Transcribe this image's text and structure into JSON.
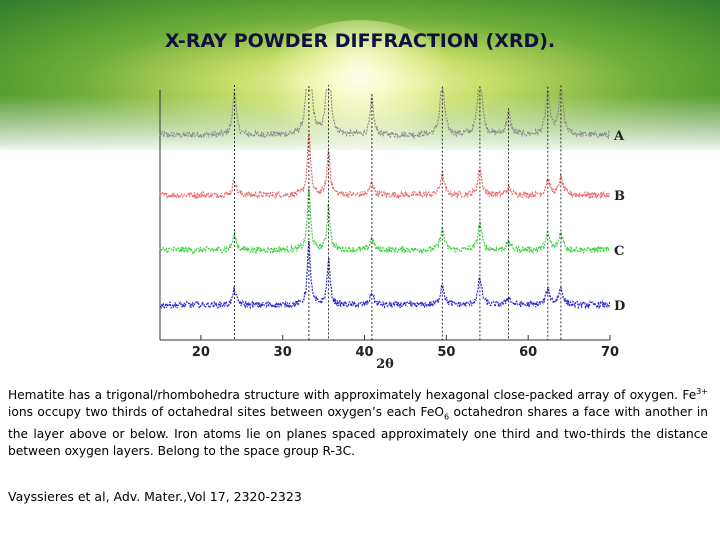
{
  "slide": {
    "title": "X-RAY POWDER DIFFRACTION (XRD).",
    "paragraph": {
      "p1": "Hematite has a trigonal/rhombohedra structure with approximately hexagonal close-packed array of oxygen. Fe",
      "sup1": "3+",
      "p2": " ions occupy two thirds of octahedral sites between oxygen’s each FeO",
      "sub1": "6",
      "p3": " octahedron shares a face with another in the layer above or below. Iron atoms lie on planes spaced approximately one third and two-thirds the distance between oxygen layers. Belong to the space group R-3C."
    },
    "reference": "Vayssieres et al, Adv. Mater.,Vol 17,  2320-2323"
  },
  "chart_data": {
    "type": "line",
    "xlabel": "2θ",
    "ylabel": "",
    "xlim": [
      15,
      70
    ],
    "xticks": [
      20,
      30,
      40,
      50,
      60,
      70
    ],
    "grid": false,
    "peaks_2theta": [
      24.1,
      33.2,
      35.6,
      40.9,
      49.5,
      54.1,
      57.6,
      62.4,
      64.0
    ],
    "peaks_relative_intensity": [
      0.25,
      1.0,
      0.72,
      0.2,
      0.33,
      0.42,
      0.12,
      0.24,
      0.27
    ],
    "series": [
      {
        "name": "A",
        "color": "#8c8c8c",
        "baseline": 0.82
      },
      {
        "name": "B",
        "color": "#ee6a6a",
        "baseline": 0.58
      },
      {
        "name": "C",
        "color": "#3fd23f",
        "baseline": 0.36
      },
      {
        "name": "D",
        "color": "#2a2ad0",
        "baseline": 0.14
      }
    ]
  }
}
